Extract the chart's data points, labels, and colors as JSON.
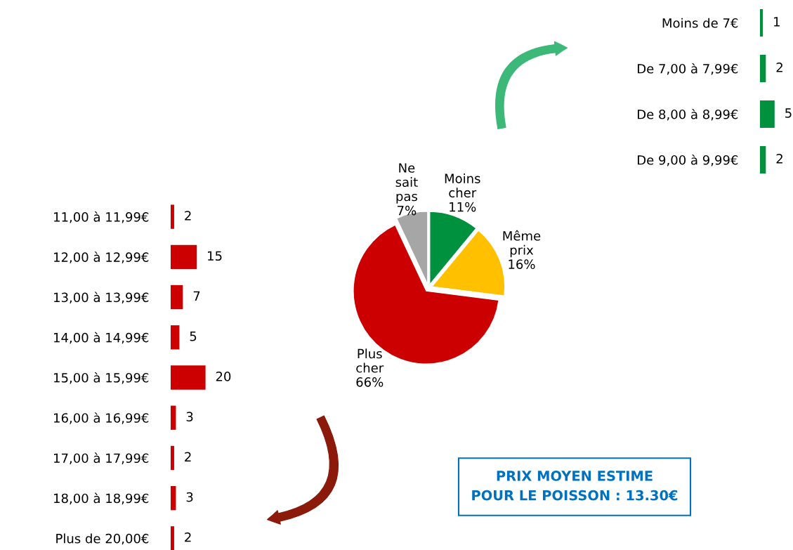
{
  "chart_data": [
    {
      "type": "pie",
      "categories": [
        "Moins cher",
        "Même prix",
        "Plus cher",
        "Ne sait pas"
      ],
      "values": [
        11,
        16,
        66,
        7
      ],
      "colors": [
        "#00913f",
        "#ffc000",
        "#cc0000",
        "#a6a6a6"
      ],
      "value_labels": [
        "11%",
        "16%",
        "66%",
        "7%"
      ],
      "annotations": [
        "PRIX MOYEN ESTIME\nPOUR LE POISSON : 13.30€"
      ]
    },
    {
      "type": "bar",
      "orientation": "horizontal",
      "categories": [
        "Moins de 7€",
        "De 7,00 à 7,99€",
        "De 8,00 à 8,99€",
        "De 9,00 à 9,99€"
      ],
      "values": [
        1,
        2,
        5,
        2
      ],
      "color": "#00913f",
      "data_labels": true
    },
    {
      "type": "bar",
      "orientation": "horizontal",
      "categories": [
        "11,00 à 11,99€",
        "12,00 à 12,99€",
        "13,00 à 13,99€",
        "14,00 à 14,99€",
        "15,00 à 15,99€",
        "16,00 à 16,99€",
        "17,00 à 17,99€",
        "18,00 à 18,99€",
        "Plus de 20,00€"
      ],
      "values": [
        2,
        15,
        7,
        5,
        20,
        3,
        2,
        3,
        2
      ],
      "color": "#cc0000",
      "data_labels": true
    }
  ]
}
